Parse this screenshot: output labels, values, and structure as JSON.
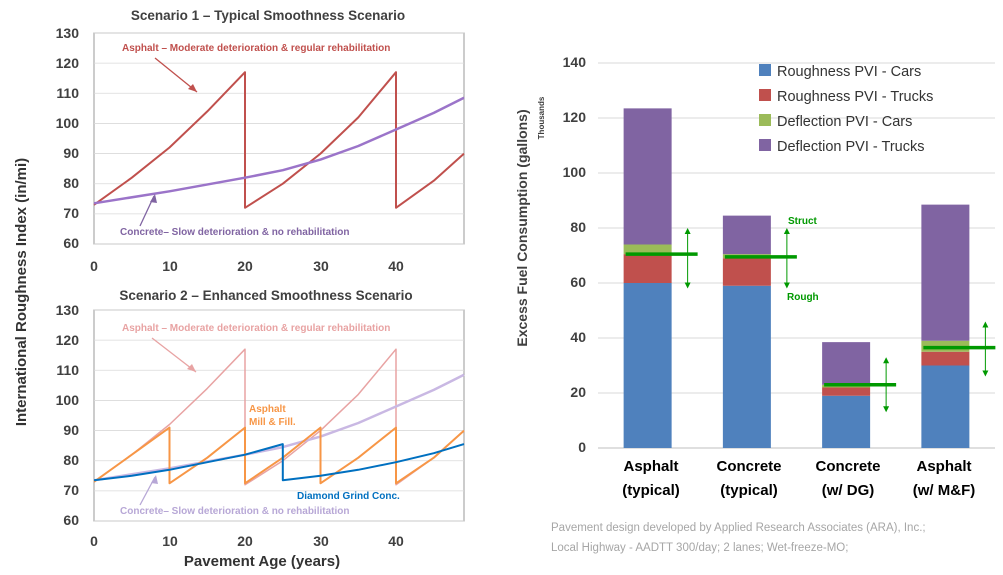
{
  "shared_y_axis_label": "International Roughness Index (in/mi)",
  "shared_x_axis_label": "Pavement Age (years)",
  "footnote": [
    "Pavement design developed by Applied Research Associates (ARA), Inc.;",
    "Local Highway - AADTT 300/day; 2 lanes; Wet-freeze-MO;"
  ],
  "chart_data": [
    {
      "type": "line",
      "title": "Scenario 1 – Typical Smoothness Scenario",
      "xlabel": "Pavement Age (years)",
      "ylabel": "International Roughness Index (in/mi)",
      "xlim": [
        0,
        49
      ],
      "ylim": [
        60,
        130
      ],
      "x_ticks": [
        "0",
        "10",
        "20",
        "30",
        "40"
      ],
      "y_ticks": [
        "60",
        "70",
        "80",
        "90",
        "100",
        "110",
        "120",
        "130"
      ],
      "series": [
        {
          "key": "asphalt",
          "color": "#c0504d",
          "width": 2,
          "opacity": 1,
          "points": [
            [
              0,
              73
            ],
            [
              5,
              82
            ],
            [
              10,
              92
            ],
            [
              15,
              104
            ],
            [
              20,
              117
            ],
            [
              20,
              72
            ],
            [
              25,
              80
            ],
            [
              30,
              90
            ],
            [
              35,
              102
            ],
            [
              40,
              117
            ],
            [
              40,
              72
            ],
            [
              45,
              81
            ],
            [
              49,
              90
            ]
          ]
        },
        {
          "key": "concrete",
          "color": "#9b74c9",
          "width": 2.5,
          "opacity": 1,
          "points": [
            [
              0,
              73.5
            ],
            [
              10,
              77.5
            ],
            [
              20,
              82
            ],
            [
              25,
              84.5
            ],
            [
              30,
              88
            ],
            [
              35,
              92.5
            ],
            [
              40,
              98
            ],
            [
              45,
              103.5
            ],
            [
              49,
              108.5
            ]
          ]
        }
      ],
      "annotations": [
        {
          "key": "asphalt",
          "text": "Asphalt – Moderate deterioration & regular rehabilitation",
          "color": "#c0504d"
        },
        {
          "key": "concrete",
          "text": "Concrete– Slow deterioration & no rehabilitation",
          "color": "#8064a2"
        }
      ]
    },
    {
      "type": "line",
      "title": "Scenario 2 – Enhanced Smoothness Scenario",
      "xlabel": "Pavement Age (years)",
      "ylabel": "International Roughness Index (in/mi)",
      "xlim": [
        0,
        49
      ],
      "ylim": [
        60,
        130
      ],
      "x_ticks": [
        "0",
        "10",
        "20",
        "30",
        "40"
      ],
      "y_ticks": [
        "60",
        "70",
        "80",
        "90",
        "100",
        "110",
        "120",
        "130"
      ],
      "series": [
        {
          "key": "asphalt",
          "color": "#e8a3a3",
          "width": 1.5,
          "opacity": 1,
          "points": [
            [
              0,
              73
            ],
            [
              5,
              82
            ],
            [
              10,
              92
            ],
            [
              15,
              104
            ],
            [
              20,
              117
            ],
            [
              20,
              72
            ],
            [
              25,
              80
            ],
            [
              30,
              90
            ],
            [
              35,
              102
            ],
            [
              40,
              117
            ],
            [
              40,
              72
            ],
            [
              45,
              81
            ],
            [
              49,
              90
            ]
          ]
        },
        {
          "key": "concrete",
          "color": "#c9b8e3",
          "width": 2.5,
          "opacity": 1,
          "points": [
            [
              0,
              73.5
            ],
            [
              10,
              77.5
            ],
            [
              20,
              82
            ],
            [
              25,
              84.5
            ],
            [
              30,
              88
            ],
            [
              35,
              92.5
            ],
            [
              40,
              98
            ],
            [
              45,
              103.5
            ],
            [
              49,
              108.5
            ]
          ]
        },
        {
          "key": "mill_fill",
          "color": "#f79646",
          "width": 2,
          "opacity": 1,
          "points": [
            [
              0,
              73
            ],
            [
              5,
              82
            ],
            [
              10,
              91
            ],
            [
              10,
              72.5
            ],
            [
              15,
              81
            ],
            [
              20,
              91
            ],
            [
              20,
              72.5
            ],
            [
              25,
              81
            ],
            [
              30,
              91
            ],
            [
              30,
              72.5
            ],
            [
              35,
              81
            ],
            [
              40,
              91
            ],
            [
              40,
              72.5
            ],
            [
              45,
              81
            ],
            [
              49,
              90
            ]
          ]
        },
        {
          "key": "diamond_grind",
          "color": "#0070c0",
          "width": 2,
          "opacity": 1,
          "points": [
            [
              0,
              73.5
            ],
            [
              5,
              75
            ],
            [
              10,
              77
            ],
            [
              15,
              79.5
            ],
            [
              20,
              82
            ],
            [
              25,
              85.5
            ],
            [
              25,
              73.5
            ],
            [
              30,
              75
            ],
            [
              35,
              77
            ],
            [
              40,
              79.5
            ],
            [
              45,
              82.5
            ],
            [
              49,
              85.5
            ]
          ]
        }
      ],
      "annotations": [
        {
          "key": "asphalt",
          "text": "Asphalt – Moderate deterioration & regular rehabilitation",
          "color": "#e8a3a3"
        },
        {
          "key": "concrete",
          "text": "Concrete– Slow deterioration & no rehabilitation",
          "color": "#b7a7d6"
        },
        {
          "key": "mill_fill",
          "lines": [
            "Asphalt",
            "Mill & Fill."
          ],
          "color": "#f79646"
        },
        {
          "key": "diamond_grind",
          "text": "Diamond Grind Conc.",
          "color": "#0070c0"
        }
      ]
    },
    {
      "type": "bar",
      "stacked": true,
      "title": "",
      "ylabel": "Excess Fuel Consumption (gallons)",
      "ylabel_unit": "Thousands",
      "ylim": [
        0,
        140
      ],
      "y_ticks": [
        "0",
        "20",
        "40",
        "60",
        "80",
        "100",
        "120",
        "140"
      ],
      "categories": [
        [
          "Asphalt",
          "(typical)"
        ],
        [
          "Concrete",
          "(typical)"
        ],
        [
          "Concrete",
          "(w/ DG)"
        ],
        [
          "Asphalt",
          "(w/ M&F)"
        ]
      ],
      "series": [
        {
          "name": "Roughness PVI - Cars",
          "color": "#4f81bd",
          "values": [
            60,
            59,
            19,
            30
          ]
        },
        {
          "name": "Roughness PVI - Trucks",
          "color": "#c0504d",
          "values": [
            10.5,
            10,
            3,
            5
          ]
        },
        {
          "name": "Deflection PVI - Cars",
          "color": "#9bbb59",
          "values": [
            3.5,
            1.5,
            1,
            4
          ]
        },
        {
          "name": "Deflection PVI - Trucks",
          "color": "#8064a2",
          "values": [
            49.5,
            14,
            15.5,
            49.5
          ]
        }
      ],
      "legend_position": "top-right",
      "markers": {
        "values": [
          70.5,
          69.5,
          23,
          36.5
        ],
        "range": [
          [
            58,
            80
          ],
          [
            58,
            80
          ],
          [
            13,
            33
          ],
          [
            26,
            46
          ]
        ],
        "color": "#009900",
        "labels": [
          "Struct",
          "Rough"
        ]
      }
    }
  ]
}
